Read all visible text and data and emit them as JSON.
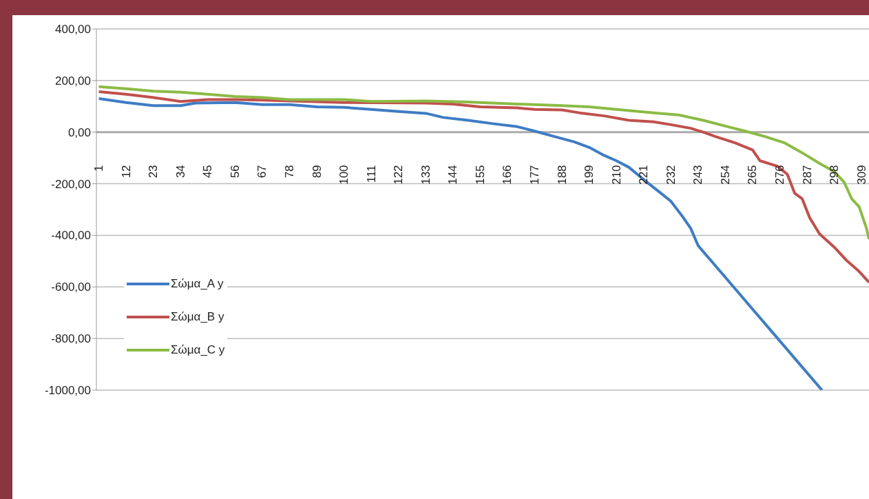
{
  "chart_data": {
    "type": "line",
    "xlim": [
      0,
      312
    ],
    "xticks": [
      1,
      12,
      23,
      34,
      45,
      56,
      67,
      78,
      89,
      100,
      111,
      122,
      133,
      144,
      155,
      166,
      177,
      188,
      199,
      210,
      221,
      232,
      243,
      254,
      265,
      276,
      287,
      298,
      309
    ],
    "ylim": [
      -1000,
      400
    ],
    "yticks": [
      {
        "value": 400,
        "label": "400,00"
      },
      {
        "value": 200,
        "label": "200,00"
      },
      {
        "value": 0,
        "label": "0,00"
      },
      {
        "value": -200,
        "label": "-200,00"
      },
      {
        "value": -400,
        "label": "-400,00"
      },
      {
        "value": -600,
        "label": "-600,00"
      },
      {
        "value": -800,
        "label": "-800,00"
      },
      {
        "value": -1000,
        "label": "-1000,00"
      }
    ],
    "grid": "y",
    "legend": "left",
    "marker": "none",
    "line_style": "solid",
    "series": [
      {
        "name": "Σώμα_A y",
        "color": "#3f7cc4",
        "x": [
          1,
          12,
          23,
          34,
          40,
          56,
          67,
          78,
          89,
          100,
          111,
          122,
          133,
          140,
          150,
          160,
          170,
          177,
          185,
          193,
          199,
          205,
          210,
          215,
          221,
          228,
          232,
          237,
          240,
          243,
          253,
          263,
          273,
          283,
          293
        ],
        "values": [
          130,
          115,
          103,
          103,
          113,
          115,
          107,
          107,
          98,
          96,
          88,
          80,
          73,
          57,
          46,
          33,
          21,
          4,
          -17,
          -38,
          -59,
          -90,
          -111,
          -136,
          -184,
          -237,
          -268,
          -331,
          -373,
          -440,
          -552,
          -664,
          -776,
          -888,
          -1000
        ]
      },
      {
        "name": "Σώμα_B y",
        "color": "#c0504d",
        "x": [
          1,
          12,
          23,
          34,
          45,
          56,
          67,
          100,
          133,
          144,
          155,
          170,
          177,
          188,
          195,
          205,
          215,
          225,
          232,
          240,
          245,
          250,
          258,
          265,
          268,
          275,
          279,
          282,
          285,
          288,
          292,
          298,
          303,
          308,
          312
        ],
        "values": [
          157,
          147,
          134,
          119,
          126,
          126,
          124,
          115,
          113,
          109,
          98,
          94,
          88,
          86,
          75,
          63,
          46,
          40,
          29,
          15,
          0,
          -17,
          -42,
          -69,
          -111,
          -132,
          -163,
          -237,
          -258,
          -331,
          -394,
          -446,
          -498,
          -540,
          -582
        ]
      },
      {
        "name": "Σώμα_C y",
        "color": "#8cbb45",
        "x": [
          1,
          12,
          23,
          34,
          45,
          56,
          67,
          78,
          100,
          111,
          133,
          150,
          170,
          188,
          199,
          210,
          225,
          235,
          245,
          255,
          262,
          270,
          278,
          285,
          292,
          298,
          302,
          305,
          308,
          311,
          312
        ],
        "values": [
          176,
          168,
          159,
          155,
          147,
          138,
          134,
          126,
          126,
          119,
          121,
          117,
          109,
          103,
          98,
          88,
          75,
          67,
          46,
          21,
          4,
          -17,
          -42,
          -80,
          -121,
          -153,
          -195,
          -258,
          -289,
          -373,
          -415
        ]
      }
    ]
  }
}
